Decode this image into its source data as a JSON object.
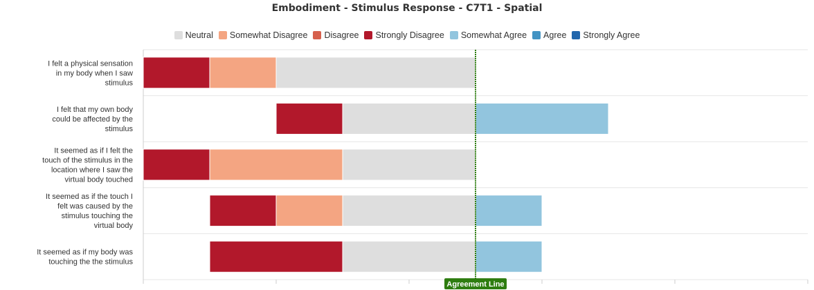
{
  "chart_data": {
    "type": "bar",
    "orientation": "horizontal",
    "stacked": true,
    "diverging": true,
    "title": "Embodiment - Stimulus Response - C7T1 - Spatial",
    "categories": [
      "I felt a physical sensation in my body when I saw stimulus",
      "I felt that my own body could be affected by the stimulus",
      "It seemed as if I felt the touch of the stimulus in the location where I saw the virtual body touched",
      "It seemed as if the touch I felt was caused by the stimulus touching the virtual body",
      "It seemed as if my body was touching the the stimulus"
    ],
    "series": [
      {
        "name": "Neutral",
        "color": "#dedede",
        "values": [
          3,
          2,
          2,
          2,
          2
        ]
      },
      {
        "name": "Somewhat Disagree",
        "color": "#f4a582",
        "values": [
          1,
          0,
          2,
          1,
          0
        ]
      },
      {
        "name": "Disagree",
        "color": "#d6604d",
        "values": [
          0,
          0,
          0,
          0,
          0
        ]
      },
      {
        "name": "Strongly Disagree",
        "color": "#b2182b",
        "values": [
          1,
          1,
          1,
          1,
          2
        ]
      },
      {
        "name": "Somewhat Agree",
        "color": "#92c5de",
        "values": [
          0,
          2,
          0,
          1,
          1
        ]
      },
      {
        "name": "Agree",
        "color": "#4393c3",
        "values": [
          0,
          0,
          0,
          0,
          0
        ]
      },
      {
        "name": "Strongly Agree",
        "color": "#2166ac",
        "values": [
          0,
          0,
          0,
          0,
          0
        ]
      }
    ],
    "stack_order_left_of_line": [
      "Neutral",
      "Somewhat Disagree",
      "Disagree",
      "Strongly Disagree"
    ],
    "stack_order_right_of_line": [
      "Somewhat Agree",
      "Agree",
      "Strongly Agree"
    ],
    "xlim": [
      -5,
      5
    ],
    "agreement_line": {
      "label": "Agreement Line",
      "value": 0,
      "color": "#2e7d10"
    },
    "legend_position": "top",
    "grid": true
  }
}
